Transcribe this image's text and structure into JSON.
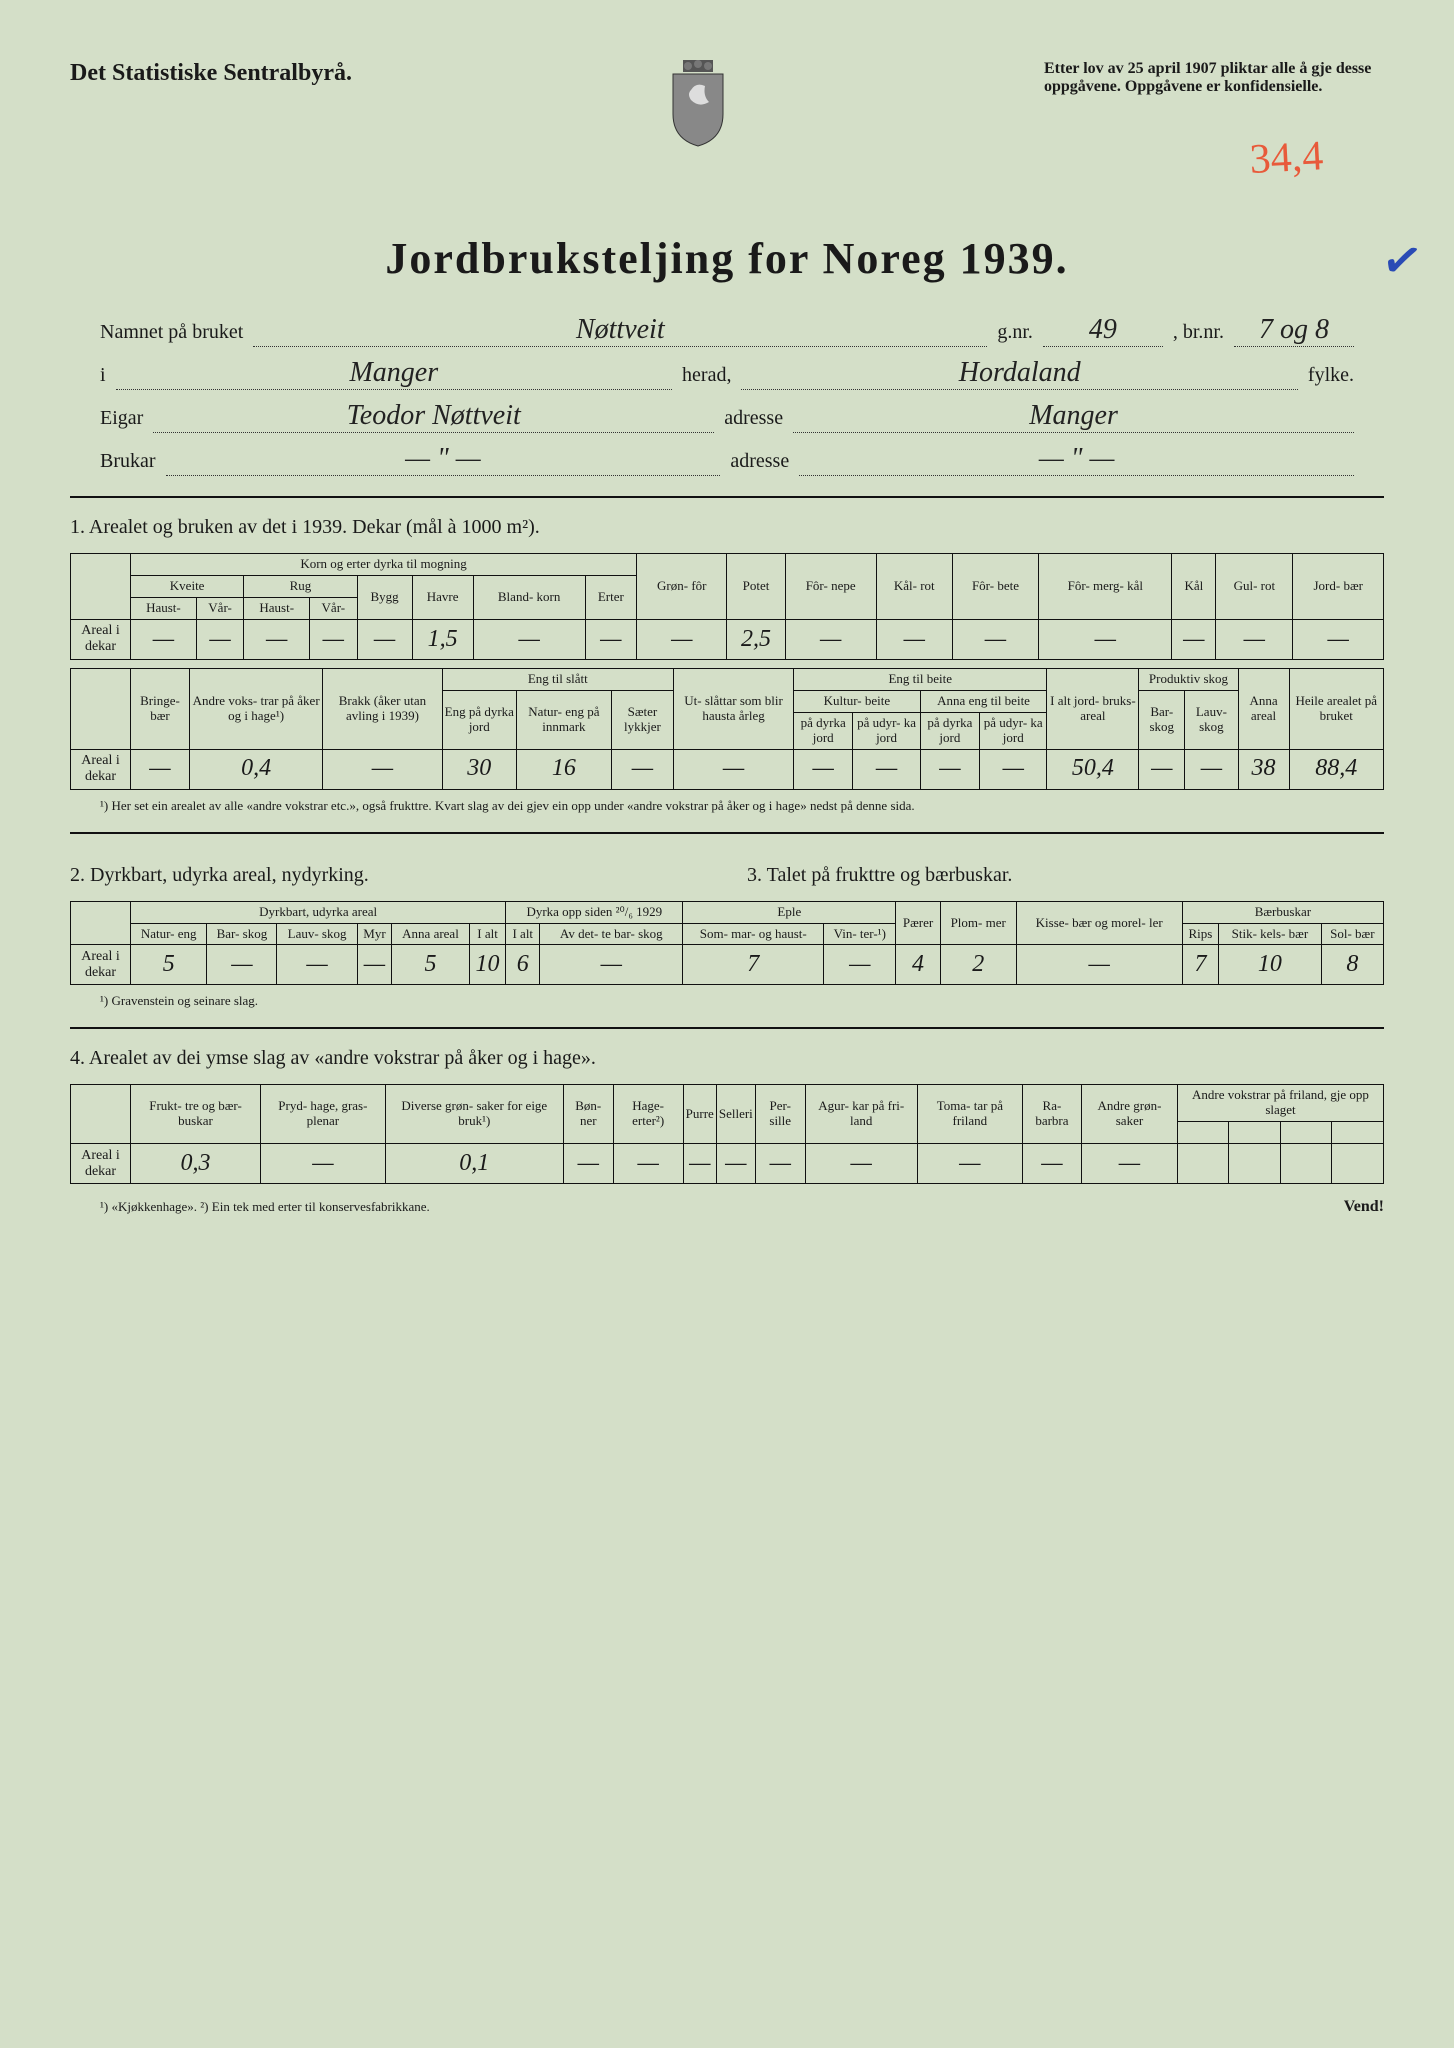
{
  "header": {
    "agency": "Det Statistiske Sentralbyrå.",
    "legal": "Etter lov av 25 april 1907 pliktar alle å gje desse oppgåvene. Oppgåvene er konfidensielle.",
    "red_annotation": "34,4",
    "title": "Jordbruksteljing for Noreg 1939.",
    "check_mark": "✓"
  },
  "form": {
    "label_bruket": "Namnet på bruket",
    "val_bruket": "Nøttveit",
    "label_gnr": "g.nr.",
    "val_gnr": "49",
    "label_brnr": ", br.nr.",
    "val_brnr": "7 og 8",
    "label_i": "i",
    "val_herad_name": "Manger",
    "label_herad": "herad,",
    "val_fylke": "Hordaland",
    "label_fylke": "fylke.",
    "label_eigar": "Eigar",
    "val_eigar": "Teodor Nøttveit",
    "label_adresse": "adresse",
    "val_adresse_eigar": "Manger",
    "label_brukar": "Brukar",
    "val_brukar": "— \" —",
    "val_adresse_brukar": "— \" —"
  },
  "section1": {
    "title": "1.  Arealet og bruken av det i 1939.  Dekar (mål à 1000 m²).",
    "tableA": {
      "group_korn": "Korn og erter dyrka til mogning",
      "h_kveite": "Kveite",
      "h_rug": "Rug",
      "h_bygg": "Bygg",
      "h_havre": "Havre",
      "h_blandkorn": "Bland-\nkorn",
      "h_erter": "Erter",
      "h_gronfor": "Grøn-\nfôr",
      "h_potet": "Potet",
      "h_fornepe": "Fôr-\nnepe",
      "h_kalrot": "Kål-\nrot",
      "h_forbete": "Fôr-\nbete",
      "h_formergkal": "Fôr-\nmerg-\nkål",
      "h_kal": "Kål",
      "h_gulrot": "Gul-\nrot",
      "h_jordbaer": "Jord-\nbær",
      "h_haust": "Haust-",
      "h_var": "Vår-",
      "row_label": "Areal i dekar",
      "vals": [
        "—",
        "—",
        "—",
        "—",
        "—",
        "1,5",
        "—",
        "—",
        "—",
        "2,5",
        "—",
        "—",
        "—",
        "—",
        "—",
        "—",
        "—"
      ]
    },
    "tableB": {
      "h_bringebaer": "Bringe-\nbær",
      "h_andrevokstrar": "Andre\nvoks-\ntrar på\nåker og\ni hage¹)",
      "h_brakk": "Brakk\n(åker\nutan\navling\ni 1939)",
      "g_engslatt": "Eng til slått",
      "h_engdyrka": "Eng\npå\ndyrka\njord",
      "h_natureng": "Natur-\neng på\ninnmark",
      "h_saeter": "Sæter\nlykkjer",
      "h_utslattar": "Ut-\nslåttar\nsom\nblir\nhausta\nårleg",
      "g_engbeite": "Eng til beite",
      "h_kulturbeite": "Kultur-\nbeite",
      "h_annaengbeite": "Anna\neng til beite",
      "h_padyrka": "på\ndyrka\njord",
      "h_paudyrka": "på\nudyr-\nka jord",
      "h_ialt": "I alt\njord-\nbruks-\nareal",
      "g_prodskog": "Produktiv skog",
      "h_barskog": "Bar-\nskog",
      "h_lauvskog": "Lauv-\nskog",
      "h_annaareal": "Anna\nareal",
      "h_heile": "Heile\narealet\npå\nbruket",
      "row_label": "Areal i dekar",
      "vals": [
        "—",
        "0,4",
        "—",
        "30",
        "16",
        "—",
        "—",
        "—",
        "—",
        "—",
        "—",
        "50,4",
        "—",
        "—",
        "38",
        "88,4"
      ]
    },
    "footnote": "¹) Her set ein arealet av alle «andre vokstrar etc.», også frukttre.  Kvart slag av dei gjev ein opp under «andre vokstrar på åker og i hage» nedst på denne sida."
  },
  "section2": {
    "title_left": "2.  Dyrkbart, udyrka areal, nydyrking.",
    "title_right": "3.  Talet på frukttre og bærbuskar.",
    "headers": {
      "g_dyrkbart": "Dyrkbart, udyrka areal",
      "h_natureng": "Natur-\neng",
      "h_barskog": "Bar-\nskog",
      "h_lauvskog": "Lauv-\nskog",
      "h_myr": "Myr",
      "h_anna": "Anna\nareal",
      "h_ialt": "I alt",
      "g_dyrkaopp": "Dyrka opp\nsiden ²⁰/₆ 1929",
      "h_ialt2": "I alt",
      "h_avdet": "Av det-\nte bar-\nskog",
      "g_eple": "Eple",
      "h_sommar": "Som-\nmar- og\nhaust-",
      "h_vinter": "Vin-\nter-¹)",
      "h_paerer": "Pærer",
      "h_plommer": "Plom-\nmer",
      "h_kissebaer": "Kisse-\nbær\nog\nmorel-\nler",
      "g_baerbuskar": "Bærbuskar",
      "h_rips": "Rips",
      "h_stikkels": "Stik-\nkels-\nbær",
      "h_solbaer": "Sol-\nbær"
    },
    "row_label": "Areal i dekar",
    "vals": [
      "5",
      "—",
      "—",
      "—",
      "5",
      "10",
      "6",
      "—",
      "7",
      "—",
      "4",
      "2",
      "—",
      "7",
      "10",
      "8"
    ],
    "footnote": "¹) Gravenstein og seinare slag."
  },
  "section4": {
    "title": "4.  Arealet av dei ymse slag av «andre vokstrar på åker og i hage».",
    "headers": {
      "h_frukttre": "Frukt-\ntre og\nbær-\nbuskar",
      "h_prydhage": "Pryd-\nhage,\ngras-\nplenar",
      "h_diverse": "Diverse\ngrøn-\nsaker\nfor eige\nbruk¹)",
      "h_bonner": "Bøn-\nner",
      "h_hageerter": "Hage-\nerter²)",
      "h_purre": "Purre",
      "h_selleri": "Selleri",
      "h_persille": "Per-\nsille",
      "h_agurkar": "Agur-\nkar på\nfri-\nland",
      "h_tomatar": "Toma-\ntar på\nfriland",
      "h_rabarbra": "Ra-\nbarbra",
      "h_andregron": "Andre\ngrøn-\nsaker",
      "g_andrevokstrar": "Andre vokstrar på friland,\ngje opp slaget"
    },
    "row_label": "Areal i dekar",
    "vals": [
      "0,3",
      "—",
      "0,1",
      "—",
      "—",
      "—",
      "—",
      "—",
      "—",
      "—",
      "—",
      "—",
      "",
      "",
      "",
      ""
    ],
    "footnote": "¹) «Kjøkkenhage».  ²) Ein tek med erter til konservesfabrikkane.",
    "vend": "Vend!"
  }
}
